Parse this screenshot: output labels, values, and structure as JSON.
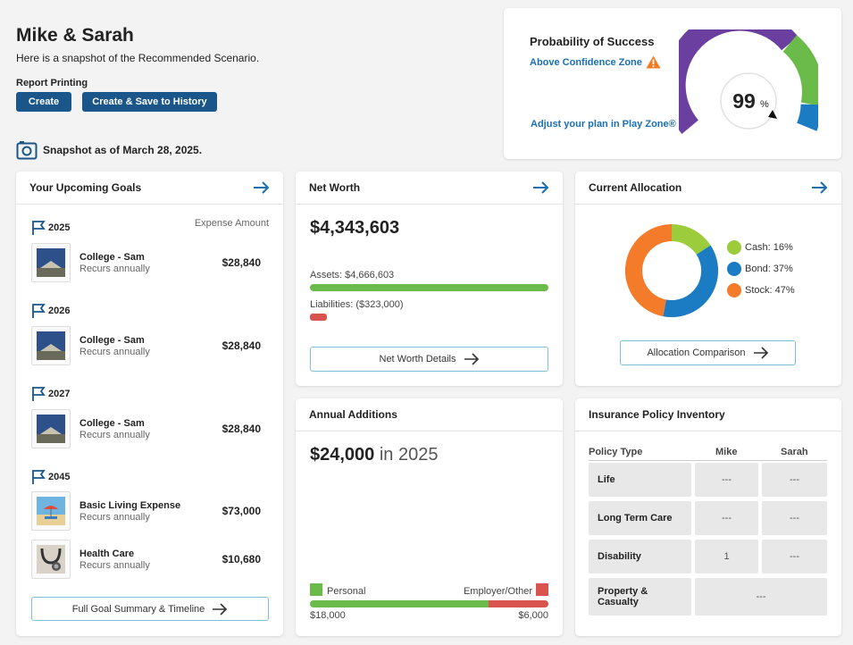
{
  "header": {
    "title": "Mike & Sarah",
    "subtitle": "Here is a snapshot of the Recommended Scenario.",
    "report_label": "Report Printing",
    "create_label": "Create",
    "create_save_label": "Create & Save to History",
    "snapshot_text": "Snapshot as of March 28, 2025."
  },
  "probability": {
    "title": "Probability of Success",
    "zone": "Above Confidence Zone",
    "adjust_link": "Adjust your plan in Play Zone®",
    "value": "99",
    "unit": "%",
    "colors": {
      "purple": "#6b3fa0",
      "green": "#6bbb4a",
      "blue": "#1b7cc4"
    }
  },
  "goals": {
    "title": "Your Upcoming Goals",
    "expense_header": "Expense Amount",
    "groups": [
      {
        "year": "2025",
        "name": "College - Sam",
        "recurs": "Recurs annually",
        "amount": "$28,840",
        "icon": "graduation-photo"
      },
      {
        "year": "2026",
        "name": "College - Sam",
        "recurs": "Recurs annually",
        "amount": "$28,840",
        "icon": "graduation-photo"
      },
      {
        "year": "2027",
        "name": "College - Sam",
        "recurs": "Recurs annually",
        "amount": "$28,840",
        "icon": "graduation-photo"
      },
      {
        "year": "2045",
        "name": "Basic Living Expense",
        "recurs": "Recurs annually",
        "amount": "$73,000",
        "icon": "beach-photo"
      }
    ],
    "extra": {
      "name": "Health Care",
      "recurs": "Recurs annually",
      "amount": "$10,680",
      "icon": "stethoscope-photo"
    },
    "summary_button": "Full Goal Summary & Timeline"
  },
  "net_worth": {
    "title": "Net Worth",
    "value": "$4,343,603",
    "assets": "Assets: $4,666,603",
    "liabilities": "Liabilities: ($323,000)",
    "details_button": "Net Worth Details"
  },
  "allocation": {
    "title": "Current Allocation",
    "cash": "Cash: 16%",
    "bond": "Bond: 37%",
    "stock": "Stock: 47%",
    "comparison_button": "Allocation Comparison",
    "colors": {
      "cash": "#9ccb3b",
      "bond": "#1b7cc4",
      "stock": "#f37b2a"
    }
  },
  "annual_additions": {
    "title": "Annual Additions",
    "value": "$24,000",
    "suffix": " in 2025",
    "personal_label": "Personal",
    "employer_label": "Employer/Other",
    "personal_amount": "$18,000",
    "employer_amount": "$6,000"
  },
  "insurance": {
    "title": "Insurance Policy Inventory",
    "col_type": "Policy Type",
    "col_mike": "Mike",
    "col_sarah": "Sarah",
    "rows": [
      {
        "type": "Life",
        "mike": "---",
        "sarah": "---"
      },
      {
        "type": "Long Term Care",
        "mike": "---",
        "sarah": "---"
      },
      {
        "type": "Disability",
        "mike": "1",
        "sarah": "---"
      },
      {
        "type": "Property & Casualty",
        "joint": "---"
      }
    ]
  }
}
